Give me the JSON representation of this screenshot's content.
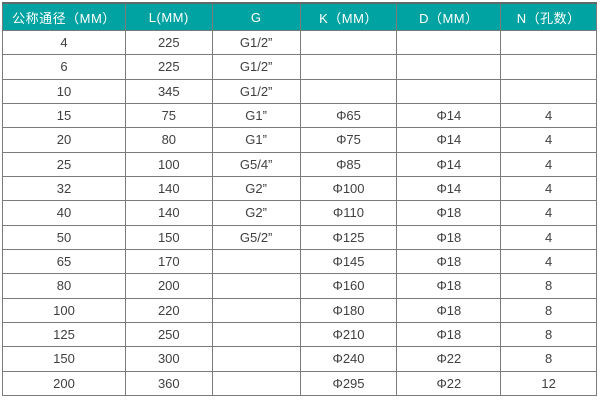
{
  "chart_data": {
    "type": "table",
    "columns": [
      {
        "key": "dn",
        "label": "公称通径（MM）"
      },
      {
        "key": "l",
        "label": "L(MM)"
      },
      {
        "key": "g",
        "label": "G"
      },
      {
        "key": "k",
        "label": "K（MM）"
      },
      {
        "key": "d",
        "label": "D（MM）"
      },
      {
        "key": "n",
        "label": "N（孔数）"
      }
    ],
    "rows": [
      [
        "4",
        "225",
        "G1/2”",
        "",
        "",
        ""
      ],
      [
        "6",
        "225",
        "G1/2”",
        "",
        "",
        ""
      ],
      [
        "10",
        "345",
        "G1/2”",
        "",
        "",
        ""
      ],
      [
        "15",
        "75",
        "G1”",
        "Φ65",
        "Φ14",
        "4"
      ],
      [
        "20",
        "80",
        "G1”",
        "Φ75",
        "Φ14",
        "4"
      ],
      [
        "25",
        "100",
        "G5/4”",
        "Φ85",
        "Φ14",
        "4"
      ],
      [
        "32",
        "140",
        "G2”",
        "Φ100",
        "Φ14",
        "4"
      ],
      [
        "40",
        "140",
        "G2”",
        "Φ110",
        "Φ18",
        "4"
      ],
      [
        "50",
        "150",
        "G5/2”",
        "Φ125",
        "Φ18",
        "4"
      ],
      [
        "65",
        "170",
        "",
        "Φ145",
        "Φ18",
        "4"
      ],
      [
        "80",
        "200",
        "",
        "Φ160",
        "Φ18",
        "8"
      ],
      [
        "100",
        "220",
        "",
        "Φ180",
        "Φ18",
        "8"
      ],
      [
        "125",
        "250",
        "",
        "Φ210",
        "Φ18",
        "8"
      ],
      [
        "150",
        "300",
        "",
        "Φ240",
        "Φ22",
        "8"
      ],
      [
        "200",
        "360",
        "",
        "Φ295",
        "Φ22",
        "12"
      ]
    ]
  },
  "colors": {
    "header_bg": "#00a2a2",
    "header_text": "#ffffff",
    "border": "#7a7a7a",
    "cell_text": "#404040",
    "row_bg": "#ffffff",
    "page_bg": "#ffffff"
  }
}
